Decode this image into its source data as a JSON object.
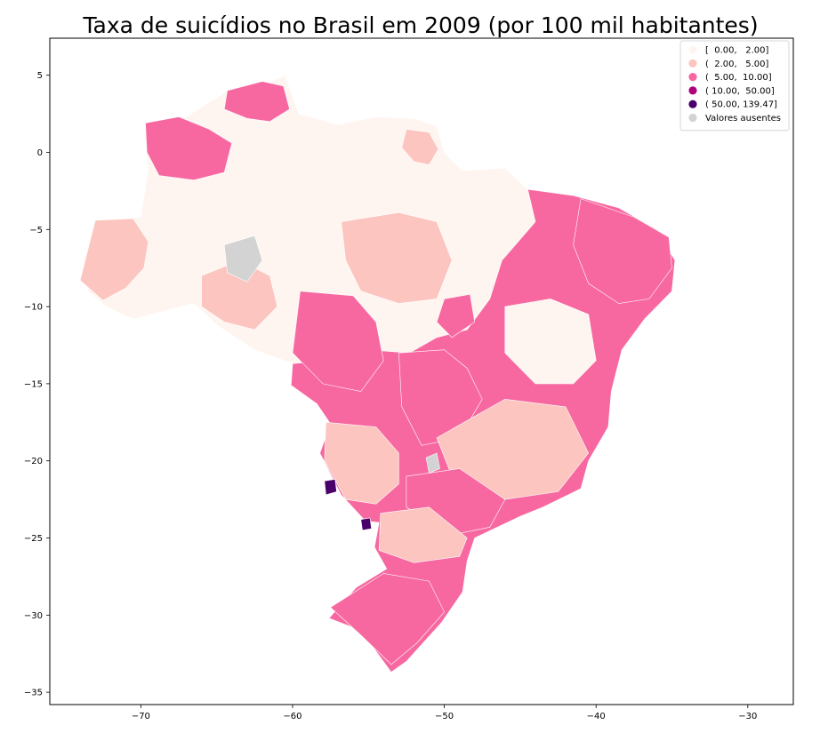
{
  "chart_data": {
    "type": "choropleth-map",
    "title": "Taxa de suicídios no Brasil em 2009 (por 100 mil habitantes)",
    "xlabel": "",
    "ylabel": "",
    "xlim": [
      -76,
      -27
    ],
    "ylim": [
      -35.8,
      7.4
    ],
    "x_ticks": [
      {
        "value": -70,
        "label": "−70"
      },
      {
        "value": -60,
        "label": "−60"
      },
      {
        "value": -50,
        "label": "−50"
      },
      {
        "value": -40,
        "label": "−40"
      },
      {
        "value": -30,
        "label": "−30"
      }
    ],
    "y_ticks": [
      {
        "value": 5,
        "label": "5"
      },
      {
        "value": 0,
        "label": "0"
      },
      {
        "value": -5,
        "label": "−5"
      },
      {
        "value": -10,
        "label": "−10"
      },
      {
        "value": -15,
        "label": "−15"
      },
      {
        "value": -20,
        "label": "−20"
      },
      {
        "value": -25,
        "label": "−25"
      },
      {
        "value": -30,
        "label": "−30"
      },
      {
        "value": -35,
        "label": "−35"
      }
    ],
    "grid": false,
    "legend_position": "top-right",
    "legend": [
      {
        "label": "[  0.00,   2.00]",
        "color": "#fff5f0"
      },
      {
        "label": "(  2.00,   5.00]",
        "color": "#fcc5c0"
      },
      {
        "label": "(  5.00,  10.00]",
        "color": "#f768a1"
      },
      {
        "label": "( 10.00,  50.00]",
        "color": "#ae017e"
      },
      {
        "label": "( 50.00, 139.47]",
        "color": "#49006a"
      },
      {
        "label": "Valores ausentes",
        "color": "#d3d3d3"
      }
    ],
    "map_regions": [
      {
        "name": "north-amazon",
        "class": 1,
        "outline": [
          [
            -73.8,
            -7.2
          ],
          [
            -73.0,
            -4.4
          ],
          [
            -70.0,
            -4.2
          ],
          [
            -69.5,
            -1.0
          ],
          [
            -69.8,
            1.2
          ],
          [
            -67.5,
            2.0
          ],
          [
            -64.3,
            4.0
          ],
          [
            -62.5,
            4.1
          ],
          [
            -60.5,
            5.0
          ],
          [
            -59.6,
            2.5
          ],
          [
            -57.0,
            1.8
          ],
          [
            -54.5,
            2.3
          ],
          [
            -52.0,
            2.2
          ],
          [
            -50.5,
            1.7
          ],
          [
            -50.0,
            0.0
          ],
          [
            -48.8,
            -1.2
          ],
          [
            -46.0,
            -1.0
          ],
          [
            -44.5,
            -2.4
          ],
          [
            -44.0,
            -4.5
          ],
          [
            -46.2,
            -7.0
          ],
          [
            -47.0,
            -9.5
          ],
          [
            -48.5,
            -11.5
          ],
          [
            -50.5,
            -12.0
          ],
          [
            -52.3,
            -13.0
          ],
          [
            -55.0,
            -12.8
          ],
          [
            -58.0,
            -13.5
          ],
          [
            -60.0,
            -13.7
          ],
          [
            -62.5,
            -12.8
          ],
          [
            -65.0,
            -11.2
          ],
          [
            -66.5,
            -9.8
          ],
          [
            -70.5,
            -10.8
          ],
          [
            -72.3,
            -10.0
          ],
          [
            -73.5,
            -9.0
          ]
        ]
      },
      {
        "name": "northeast",
        "class": 3,
        "outline": [
          [
            -44.5,
            -2.4
          ],
          [
            -41.5,
            -2.8
          ],
          [
            -38.5,
            -3.6
          ],
          [
            -36.0,
            -5.0
          ],
          [
            -34.8,
            -7.0
          ],
          [
            -35.0,
            -9.0
          ],
          [
            -36.8,
            -10.8
          ],
          [
            -38.3,
            -12.8
          ],
          [
            -39.0,
            -15.5
          ],
          [
            -39.2,
            -17.8
          ],
          [
            -40.5,
            -20.0
          ],
          [
            -41.0,
            -21.8
          ],
          [
            -43.5,
            -23.0
          ],
          [
            -45.0,
            -23.6
          ],
          [
            -48.0,
            -25.0
          ],
          [
            -48.5,
            -26.5
          ],
          [
            -48.8,
            -28.5
          ],
          [
            -50.2,
            -30.5
          ],
          [
            -52.5,
            -33.0
          ],
          [
            -53.5,
            -33.7
          ],
          [
            -55.5,
            -31.0
          ],
          [
            -57.6,
            -30.2
          ],
          [
            -55.8,
            -28.2
          ],
          [
            -53.8,
            -27.0
          ],
          [
            -54.6,
            -25.6
          ],
          [
            -54.3,
            -24.0
          ],
          [
            -55.2,
            -23.9
          ],
          [
            -56.8,
            -22.2
          ],
          [
            -58.2,
            -19.5
          ],
          [
            -57.5,
            -17.6
          ],
          [
            -58.4,
            -16.3
          ],
          [
            -60.1,
            -15.1
          ],
          [
            -60.0,
            -13.7
          ],
          [
            -58.0,
            -13.5
          ],
          [
            -55.0,
            -12.8
          ],
          [
            -52.3,
            -13.0
          ],
          [
            -50.5,
            -12.0
          ],
          [
            -48.5,
            -11.5
          ],
          [
            -47.0,
            -9.5
          ],
          [
            -46.2,
            -7.0
          ],
          [
            -44.0,
            -4.5
          ]
        ]
      },
      {
        "name": "west-pink-1",
        "class": 2,
        "outline": [
          [
            -74.0,
            -8.3
          ],
          [
            -73.0,
            -4.4
          ],
          [
            -70.5,
            -4.3
          ],
          [
            -69.5,
            -5.8
          ],
          [
            -69.8,
            -7.5
          ],
          [
            -71.0,
            -8.8
          ],
          [
            -72.5,
            -9.6
          ]
        ]
      },
      {
        "name": "roraima-magenta",
        "class": 3,
        "outline": [
          [
            -64.3,
            4.0
          ],
          [
            -62.0,
            4.6
          ],
          [
            -60.6,
            4.3
          ],
          [
            -60.2,
            2.8
          ],
          [
            -61.5,
            2.0
          ],
          [
            -63.0,
            2.2
          ],
          [
            -64.5,
            2.8
          ]
        ]
      },
      {
        "name": "amazonas-magenta",
        "class": 3,
        "outline": [
          [
            -69.7,
            1.9
          ],
          [
            -67.5,
            2.3
          ],
          [
            -65.5,
            1.5
          ],
          [
            -64.0,
            0.6
          ],
          [
            -64.5,
            -1.3
          ],
          [
            -66.5,
            -1.8
          ],
          [
            -68.8,
            -1.5
          ],
          [
            -69.6,
            0.0
          ]
        ]
      },
      {
        "name": "para-pink",
        "class": 2,
        "outline": [
          [
            -56.8,
            -4.5
          ],
          [
            -53.0,
            -3.9
          ],
          [
            -50.5,
            -4.5
          ],
          [
            -49.5,
            -7.0
          ],
          [
            -50.5,
            -9.5
          ],
          [
            -53.0,
            -9.8
          ],
          [
            -55.5,
            -9.0
          ],
          [
            -56.5,
            -7.0
          ]
        ]
      },
      {
        "name": "amapa-pink",
        "class": 2,
        "outline": [
          [
            -52.5,
            1.5
          ],
          [
            -51.0,
            1.3
          ],
          [
            -50.4,
            0.2
          ],
          [
            -51.0,
            -0.8
          ],
          [
            -52.0,
            -0.6
          ],
          [
            -52.8,
            0.3
          ]
        ]
      },
      {
        "name": "acre-rondonia-pink",
        "class": 2,
        "outline": [
          [
            -66.0,
            -8.0
          ],
          [
            -63.5,
            -7.0
          ],
          [
            -61.5,
            -8.0
          ],
          [
            -61.0,
            -10.0
          ],
          [
            -62.5,
            -11.5
          ],
          [
            -64.5,
            -11.0
          ],
          [
            -66.0,
            -10.0
          ]
        ]
      },
      {
        "name": "mato-grosso-magenta",
        "class": 3,
        "outline": [
          [
            -59.5,
            -9.0
          ],
          [
            -56.0,
            -9.3
          ],
          [
            -54.5,
            -11.0
          ],
          [
            -54.0,
            -13.5
          ],
          [
            -55.5,
            -15.5
          ],
          [
            -58.0,
            -15.0
          ],
          [
            -60.0,
            -13.0
          ]
        ]
      },
      {
        "name": "mato-grosso-sul-pink",
        "class": 2,
        "outline": [
          [
            -57.8,
            -17.5
          ],
          [
            -54.5,
            -17.8
          ],
          [
            -53.0,
            -19.5
          ],
          [
            -53.0,
            -21.5
          ],
          [
            -54.5,
            -22.8
          ],
          [
            -56.5,
            -22.5
          ],
          [
            -57.9,
            -20.0
          ]
        ]
      },
      {
        "name": "goias-magenta",
        "class": 3,
        "outline": [
          [
            -53.0,
            -13.0
          ],
          [
            -50.0,
            -12.8
          ],
          [
            -48.5,
            -14.0
          ],
          [
            -47.5,
            -16.0
          ],
          [
            -49.0,
            -18.5
          ],
          [
            -51.5,
            -19.0
          ],
          [
            -52.8,
            -16.5
          ]
        ]
      },
      {
        "name": "tocantins-magenta",
        "class": 3,
        "outline": [
          [
            -50.0,
            -9.5
          ],
          [
            -48.3,
            -9.2
          ],
          [
            -48.0,
            -11.0
          ],
          [
            -49.5,
            -12.0
          ],
          [
            -50.5,
            -11.0
          ]
        ]
      },
      {
        "name": "nordeste-coast-magenta",
        "class": 3,
        "outline": [
          [
            -41.0,
            -3.0
          ],
          [
            -37.5,
            -4.2
          ],
          [
            -35.2,
            -5.5
          ],
          [
            -35.0,
            -7.5
          ],
          [
            -36.5,
            -9.5
          ],
          [
            -38.5,
            -9.8
          ],
          [
            -40.5,
            -8.5
          ],
          [
            -41.5,
            -6.0
          ]
        ]
      },
      {
        "name": "bahia-light",
        "class": 1,
        "outline": [
          [
            -46.0,
            -10.0
          ],
          [
            -43.0,
            -9.5
          ],
          [
            -40.5,
            -10.5
          ],
          [
            -40.0,
            -13.5
          ],
          [
            -41.5,
            -15.0
          ],
          [
            -44.0,
            -15.0
          ],
          [
            -46.0,
            -13.0
          ]
        ]
      },
      {
        "name": "minas-pink",
        "class": 2,
        "outline": [
          [
            -50.5,
            -18.5
          ],
          [
            -46.0,
            -16.0
          ],
          [
            -42.0,
            -16.5
          ],
          [
            -40.5,
            -19.5
          ],
          [
            -42.5,
            -22.0
          ],
          [
            -46.0,
            -22.5
          ],
          [
            -49.5,
            -21.0
          ]
        ]
      },
      {
        "name": "sao-paulo-magenta",
        "class": 3,
        "outline": [
          [
            -52.5,
            -21.0
          ],
          [
            -49.0,
            -20.5
          ],
          [
            -46.0,
            -22.5
          ],
          [
            -47.0,
            -24.3
          ],
          [
            -49.5,
            -24.8
          ],
          [
            -52.5,
            -23.0
          ]
        ]
      },
      {
        "name": "parana-pink",
        "class": 2,
        "outline": [
          [
            -54.2,
            -23.4
          ],
          [
            -51.0,
            -23.0
          ],
          [
            -48.5,
            -25.0
          ],
          [
            -49.0,
            -26.2
          ],
          [
            -52.0,
            -26.6
          ],
          [
            -54.3,
            -25.8
          ]
        ]
      },
      {
        "name": "rs-magenta",
        "class": 3,
        "outline": [
          [
            -57.5,
            -29.5
          ],
          [
            -54.0,
            -27.3
          ],
          [
            -51.0,
            -27.8
          ],
          [
            -50.0,
            -29.8
          ],
          [
            -51.8,
            -31.8
          ],
          [
            -53.5,
            -33.2
          ],
          [
            -55.5,
            -31.3
          ]
        ]
      },
      {
        "name": "missing-1",
        "class": 6,
        "outline": [
          [
            -64.5,
            -6.0
          ],
          [
            -62.5,
            -5.4
          ],
          [
            -62.0,
            -7.0
          ],
          [
            -63.0,
            -8.4
          ],
          [
            -64.3,
            -7.8
          ]
        ]
      },
      {
        "name": "missing-2",
        "class": 6,
        "outline": [
          [
            -51.2,
            -19.8
          ],
          [
            -50.5,
            -19.5
          ],
          [
            -50.3,
            -20.5
          ],
          [
            -51.0,
            -20.8
          ]
        ]
      },
      {
        "name": "class5-1",
        "class": 5,
        "outline": [
          [
            -57.9,
            -21.3
          ],
          [
            -57.2,
            -21.2
          ],
          [
            -57.1,
            -22.0
          ],
          [
            -57.8,
            -22.2
          ]
        ]
      },
      {
        "name": "class5-2",
        "class": 5,
        "outline": [
          [
            -55.5,
            -23.8
          ],
          [
            -54.9,
            -23.7
          ],
          [
            -54.8,
            -24.4
          ],
          [
            -55.4,
            -24.5
          ]
        ]
      }
    ]
  }
}
